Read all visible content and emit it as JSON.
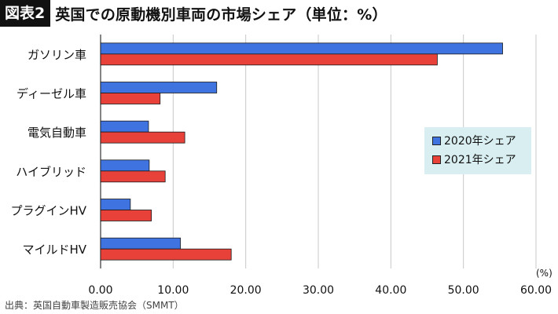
{
  "header": {
    "badge": "図表2",
    "title": "英国での原動機別車両の市場シェア（単位：%）"
  },
  "unit_label": "(%)",
  "source": "出典：英国自動車製造販売協会（SMMT）",
  "colors": {
    "series_2020": "#3f73e0",
    "series_2021": "#e8413a",
    "legend_bg": "#d9eef1"
  },
  "chart_data": {
    "type": "bar",
    "orientation": "horizontal",
    "categories": [
      "ガソリン車",
      "ディーゼル車",
      "電気自動車",
      "ハイブリッド",
      "プラグインHV",
      "マイルドHV"
    ],
    "series": [
      {
        "name": "2020年シェア",
        "values": [
          55.4,
          16.0,
          6.6,
          6.7,
          4.1,
          11.0
        ]
      },
      {
        "name": "2021年シェア",
        "values": [
          46.4,
          8.2,
          11.6,
          8.9,
          7.0,
          18.0
        ]
      }
    ],
    "xlim": [
      0,
      60
    ],
    "xticks": [
      "0.00",
      "10.00",
      "20.00",
      "30.00",
      "40.00",
      "50.00",
      "60.00"
    ],
    "grid": true,
    "legend_position": "right"
  }
}
